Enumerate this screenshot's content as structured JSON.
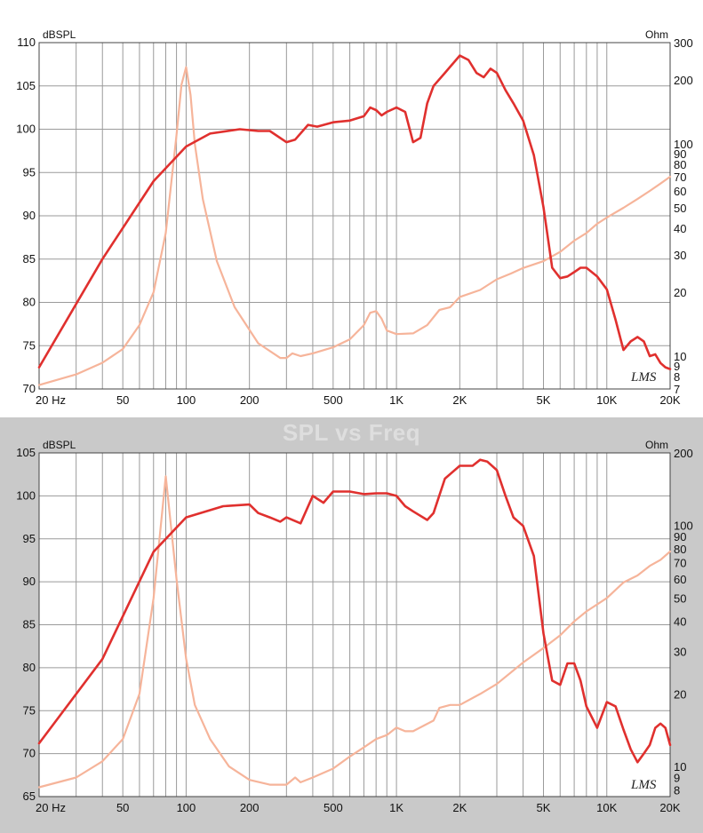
{
  "heading": "SPL vs Freq",
  "watermark": "LMS",
  "chart_data": [
    {
      "type": "line",
      "left_unit": "dBSPL",
      "right_unit": "Ohm",
      "xscale": "log",
      "xlim": [
        20,
        20000
      ],
      "ylim": [
        70,
        110
      ],
      "y2lim": [
        7,
        300
      ],
      "y2scale": "log",
      "grid": true,
      "x_tick_labels": [
        {
          "v": 20,
          "t": "20  Hz"
        },
        {
          "v": 50,
          "t": "50"
        },
        {
          "v": 100,
          "t": "100"
        },
        {
          "v": 200,
          "t": "200"
        },
        {
          "v": 500,
          "t": "500"
        },
        {
          "v": 1000,
          "t": "1K"
        },
        {
          "v": 2000,
          "t": "2K"
        },
        {
          "v": 5000,
          "t": "5K"
        },
        {
          "v": 10000,
          "t": "10K"
        },
        {
          "v": 20000,
          "t": "20K"
        }
      ],
      "y_tick_labels": [
        "70",
        "75",
        "80",
        "85",
        "90",
        "95",
        "100",
        "105",
        "110"
      ],
      "y2_tick_labels": [
        {
          "v": 7,
          "t": "7"
        },
        {
          "v": 8,
          "t": "8"
        },
        {
          "v": 9,
          "t": "9"
        },
        {
          "v": 10,
          "t": "10"
        },
        {
          "v": 20,
          "t": "20"
        },
        {
          "v": 30,
          "t": "30"
        },
        {
          "v": 40,
          "t": "40"
        },
        {
          "v": 50,
          "t": "50"
        },
        {
          "v": 60,
          "t": "60"
        },
        {
          "v": 70,
          "t": "70"
        },
        {
          "v": 80,
          "t": "80"
        },
        {
          "v": 90,
          "t": "90"
        },
        {
          "v": 100,
          "t": "100"
        },
        {
          "v": 200,
          "t": "200"
        },
        {
          "v": 300,
          "t": "300"
        }
      ],
      "series": [
        {
          "axis": "left",
          "color": "#e0302e",
          "x": [
            20,
            40,
            70,
            100,
            130,
            180,
            220,
            250,
            300,
            330,
            380,
            420,
            500,
            600,
            700,
            750,
            800,
            850,
            900,
            1000,
            1100,
            1200,
            1300,
            1400,
            1500,
            1700,
            2000,
            2200,
            2400,
            2600,
            2800,
            3000,
            3300,
            3600,
            4000,
            4500,
            5000,
            5500,
            6000,
            6500,
            7000,
            7500,
            8000,
            9000,
            10000,
            11000,
            12000,
            13000,
            14000,
            15000,
            16000,
            17000,
            18000,
            19000,
            20000
          ],
          "y": [
            72.5,
            85,
            94,
            98,
            99.5,
            100,
            99.8,
            99.8,
            98.5,
            98.8,
            100.5,
            100.3,
            100.8,
            101,
            101.5,
            102.5,
            102.2,
            101.6,
            102,
            102.5,
            102,
            98.5,
            99,
            103,
            105,
            106.5,
            108.5,
            108,
            106.5,
            106,
            107,
            106.5,
            104.5,
            103,
            101,
            97,
            91,
            84,
            82.8,
            83,
            83.5,
            84,
            84,
            83,
            81.5,
            78,
            74.5,
            75.5,
            76,
            75.5,
            73.8,
            74,
            73,
            72.5,
            72.3
          ]
        },
        {
          "axis": "right",
          "color": "#f6b49a",
          "x": [
            20,
            30,
            40,
            50,
            60,
            70,
            80,
            90,
            95,
            100,
            105,
            110,
            120,
            140,
            170,
            220,
            280,
            300,
            320,
            350,
            400,
            500,
            600,
            700,
            750,
            800,
            850,
            900,
            1000,
            1200,
            1400,
            1600,
            1800,
            2000,
            2500,
            3000,
            3500,
            4000,
            5000,
            6000,
            7000,
            8000,
            9000,
            10000,
            12000,
            14000,
            16000,
            18000,
            20000
          ],
          "y": [
            7.3,
            8.2,
            9.3,
            10.8,
            14,
            20,
            38,
            110,
            190,
            230,
            170,
            100,
            55,
            28,
            17,
            11.5,
            9.8,
            9.8,
            10.3,
            10,
            10.3,
            11,
            12,
            14,
            16,
            16.3,
            15,
            13.2,
            12.7,
            12.8,
            14,
            16.5,
            17,
            19,
            20.5,
            23,
            24.5,
            26,
            28,
            31,
            35,
            38,
            42,
            45,
            50,
            55,
            60,
            65,
            70
          ]
        }
      ]
    },
    {
      "type": "line",
      "left_unit": "dBSPL",
      "right_unit": "Ohm",
      "xscale": "log",
      "xlim": [
        20,
        20000
      ],
      "ylim": [
        65,
        105
      ],
      "y2lim": [
        7.5,
        200
      ],
      "y2scale": "log",
      "grid": true,
      "x_tick_labels": [
        {
          "v": 20,
          "t": "20  Hz"
        },
        {
          "v": 50,
          "t": "50"
        },
        {
          "v": 100,
          "t": "100"
        },
        {
          "v": 200,
          "t": "200"
        },
        {
          "v": 500,
          "t": "500"
        },
        {
          "v": 1000,
          "t": "1K"
        },
        {
          "v": 2000,
          "t": "2K"
        },
        {
          "v": 5000,
          "t": "5K"
        },
        {
          "v": 10000,
          "t": "10K"
        },
        {
          "v": 20000,
          "t": "20K"
        }
      ],
      "y_tick_labels": [
        "65",
        "70",
        "75",
        "80",
        "85",
        "90",
        "95",
        "100",
        "105"
      ],
      "y2_tick_labels": [
        {
          "v": 8,
          "t": "8"
        },
        {
          "v": 9,
          "t": "9"
        },
        {
          "v": 10,
          "t": "10"
        },
        {
          "v": 20,
          "t": "20"
        },
        {
          "v": 30,
          "t": "30"
        },
        {
          "v": 40,
          "t": "40"
        },
        {
          "v": 50,
          "t": "50"
        },
        {
          "v": 60,
          "t": "60"
        },
        {
          "v": 70,
          "t": "70"
        },
        {
          "v": 80,
          "t": "80"
        },
        {
          "v": 90,
          "t": "90"
        },
        {
          "v": 100,
          "t": "100"
        },
        {
          "v": 200,
          "t": "200"
        }
      ],
      "series": [
        {
          "axis": "left",
          "color": "#e0302e",
          "x": [
            20,
            40,
            70,
            100,
            150,
            200,
            220,
            250,
            280,
            300,
            350,
            400,
            450,
            500,
            600,
            700,
            800,
            900,
            1000,
            1100,
            1200,
            1400,
            1500,
            1700,
            2000,
            2300,
            2500,
            2700,
            3000,
            3300,
            3600,
            4000,
            4500,
            5000,
            5500,
            6000,
            6500,
            7000,
            7500,
            8000,
            9000,
            10000,
            11000,
            12000,
            13000,
            14000,
            15000,
            16000,
            17000,
            18000,
            19000,
            20000
          ],
          "y": [
            71.2,
            81,
            93.5,
            97.5,
            98.8,
            99,
            98,
            97.5,
            97,
            97.5,
            96.8,
            100,
            99.2,
            100.5,
            100.5,
            100.2,
            100.3,
            100.3,
            100,
            98.8,
            98.2,
            97.2,
            98,
            102,
            103.5,
            103.5,
            104.2,
            104,
            103,
            100,
            97.5,
            96.5,
            93,
            84,
            78.5,
            78,
            80.5,
            80.5,
            78.5,
            75.5,
            73,
            76,
            75.5,
            72.8,
            70.5,
            69,
            70,
            71,
            73,
            73.5,
            73,
            71
          ]
        },
        {
          "axis": "right",
          "color": "#f6b49a",
          "x": [
            20,
            30,
            40,
            50,
            60,
            70,
            80,
            90,
            100,
            110,
            130,
            160,
            200,
            250,
            300,
            330,
            350,
            400,
            500,
            600,
            700,
            800,
            900,
            1000,
            1100,
            1200,
            1500,
            1600,
            1800,
            2000,
            2500,
            3000,
            4000,
            5000,
            6000,
            7000,
            8000,
            10000,
            12000,
            14000,
            16000,
            18000,
            20000
          ],
          "y": [
            8.2,
            9,
            10.5,
            13,
            20,
            50,
            160,
            60,
            28,
            18,
            13,
            10,
            8.8,
            8.4,
            8.4,
            9,
            8.6,
            9,
            9.8,
            11,
            12,
            13,
            13.5,
            14.5,
            14,
            14,
            15.5,
            17.5,
            18,
            18,
            20,
            22,
            27,
            31,
            35,
            40,
            44,
            50,
            58,
            62,
            68,
            72,
            78
          ]
        }
      ]
    }
  ]
}
